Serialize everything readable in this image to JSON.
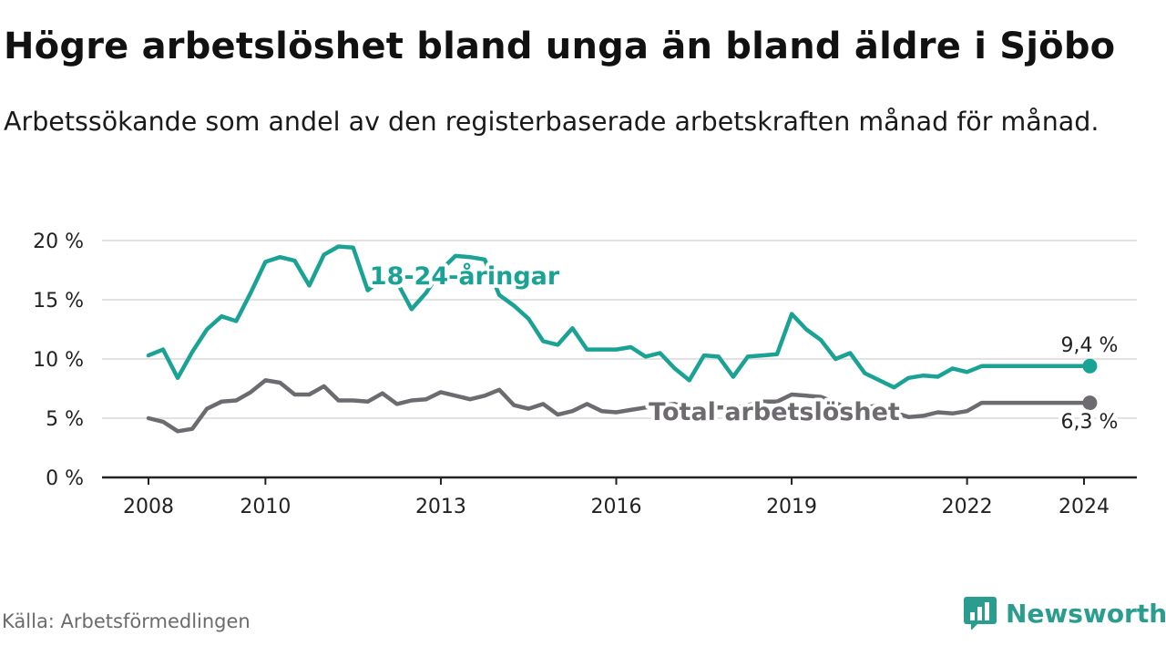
{
  "title": "Högre arbetslöshet bland unga än bland äldre i Sjöbo",
  "subtitle": "Arbetssökande som andel av den registerbaserade arbetskraften månad för månad.",
  "source": "Källa: Arbetsförmedlingen",
  "brand": "Newsworthy",
  "colors": {
    "youth": "#1aa394",
    "total": "#6d6b70",
    "grid": "#d9d9d9",
    "axis": "#222222"
  },
  "chart_data": {
    "type": "line",
    "x_start": 2008.0,
    "x_step": 0.25,
    "xlim": [
      2007.2,
      2025.0
    ],
    "ylim": [
      0,
      20
    ],
    "y_ticks": [
      {
        "value": 0,
        "label": "0 %"
      },
      {
        "value": 5,
        "label": "5 %"
      },
      {
        "value": 10,
        "label": "10 %"
      },
      {
        "value": 15,
        "label": "15 %"
      },
      {
        "value": 20,
        "label": "20 %"
      }
    ],
    "x_ticks": [
      {
        "value": 2008,
        "label": "2008"
      },
      {
        "value": 2010,
        "label": "2010"
      },
      {
        "value": 2013,
        "label": "2013"
      },
      {
        "value": 2016,
        "label": "2016"
      },
      {
        "value": 2019,
        "label": "2019"
      },
      {
        "value": 2022,
        "label": "2022"
      },
      {
        "value": 2024,
        "label": "2024"
      }
    ],
    "series": [
      {
        "name": "18-24-åringar",
        "key": "youth",
        "label": "18-24-åringar",
        "last_label": "9,4 %",
        "last_x": 2024.1,
        "last_value": 9.4,
        "values": [
          10.3,
          10.8,
          8.4,
          10.6,
          12.5,
          13.6,
          13.2,
          15.6,
          18.2,
          18.6,
          18.3,
          16.2,
          18.8,
          19.5,
          19.4,
          15.8,
          16.8,
          16.5,
          14.2,
          15.6,
          17.5,
          18.7,
          18.6,
          18.4,
          15.4,
          14.5,
          13.4,
          11.5,
          11.2,
          12.6,
          10.8,
          10.8,
          10.8,
          11.0,
          10.2,
          10.5,
          9.2,
          8.2,
          10.3,
          10.2,
          8.5,
          10.2,
          10.3,
          10.4,
          13.8,
          12.5,
          11.6,
          10.0,
          10.5,
          8.8,
          8.2,
          7.6,
          8.4,
          8.6,
          8.5,
          9.2,
          8.9,
          9.4
        ]
      },
      {
        "name": "Total arbetslöshet",
        "key": "total",
        "label": "Total arbetslöshet",
        "last_label": "6,3 %",
        "last_x": 2024.1,
        "last_value": 6.3,
        "values": [
          5.0,
          4.7,
          3.9,
          4.1,
          5.8,
          6.4,
          6.5,
          7.2,
          8.2,
          8.0,
          7.0,
          7.0,
          7.7,
          6.5,
          6.5,
          6.4,
          7.1,
          6.2,
          6.5,
          6.6,
          7.2,
          6.9,
          6.6,
          6.9,
          7.4,
          6.1,
          5.8,
          6.2,
          5.3,
          5.6,
          6.2,
          5.6,
          5.5,
          5.7,
          5.9,
          6.1,
          6.2,
          5.8,
          5.7,
          5.9,
          5.9,
          6.1,
          6.4,
          6.4,
          7.0,
          6.9,
          6.8,
          6.3,
          5.7,
          5.9,
          6.1,
          5.5,
          5.1,
          5.2,
          5.5,
          5.4,
          5.6,
          6.3
        ]
      }
    ]
  }
}
